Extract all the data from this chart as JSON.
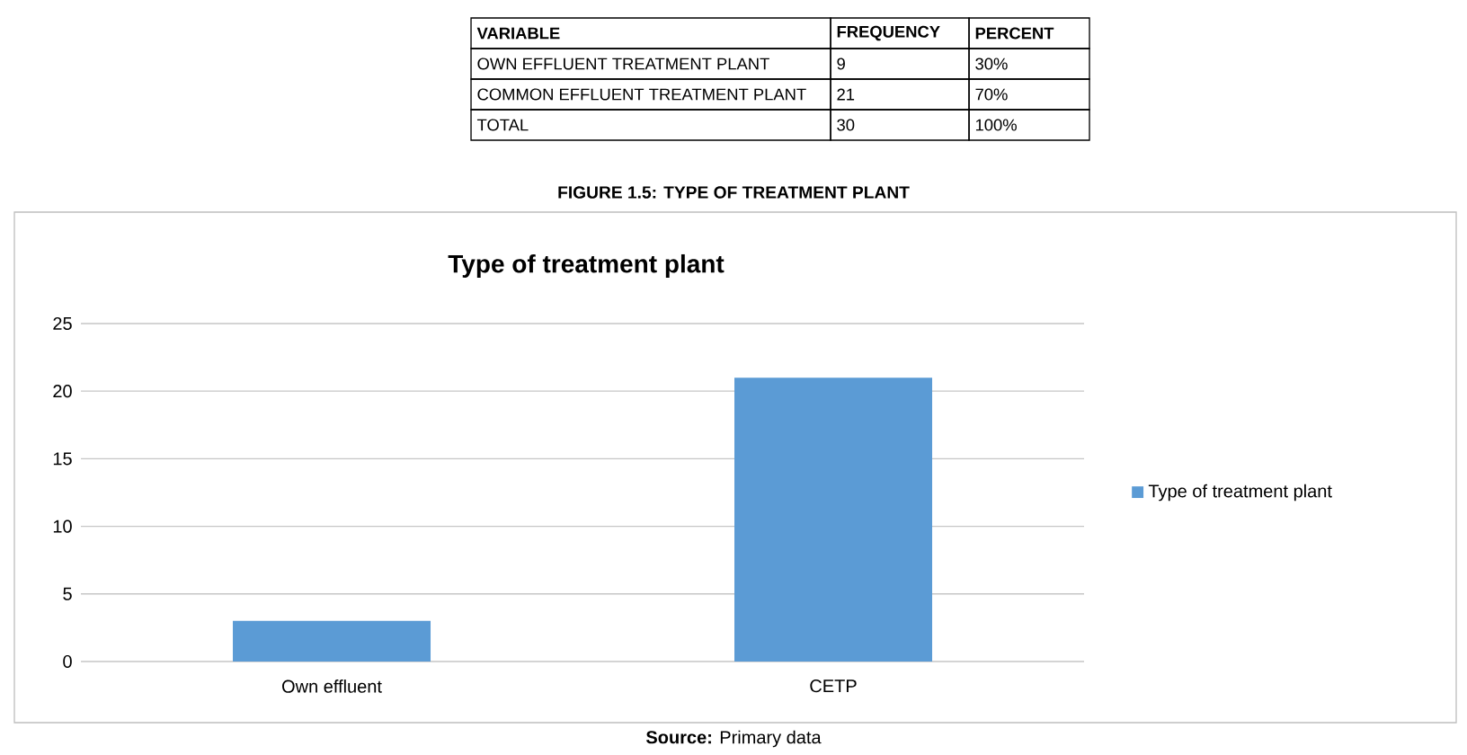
{
  "chart_data": {
    "type": "bar",
    "title": "Type of treatment plant",
    "categories": [
      "Own effluent",
      "CETP"
    ],
    "series": [
      {
        "name": "Type of treatment plant",
        "color": "#5b9bd5",
        "values": [
          3,
          21
        ]
      }
    ],
    "ylim": [
      0,
      25
    ],
    "yticks": [
      0,
      5,
      10,
      15,
      20,
      25
    ],
    "grid": "y",
    "legend": "right",
    "annotations": [
      "VARIABLE",
      "FREQUENCY",
      "PERCENT",
      "OWN EFFLUENT TREATMENT PLANT",
      "9",
      "30%",
      "COMMON EFFLUENT TREATMENT PLANT",
      "21",
      "70%",
      "TOTAL",
      "30",
      "100%",
      "FIGURE 1.5: TYPE OF TREATMENT PLANT",
      "**Source:** Primary data"
    ]
  }
}
